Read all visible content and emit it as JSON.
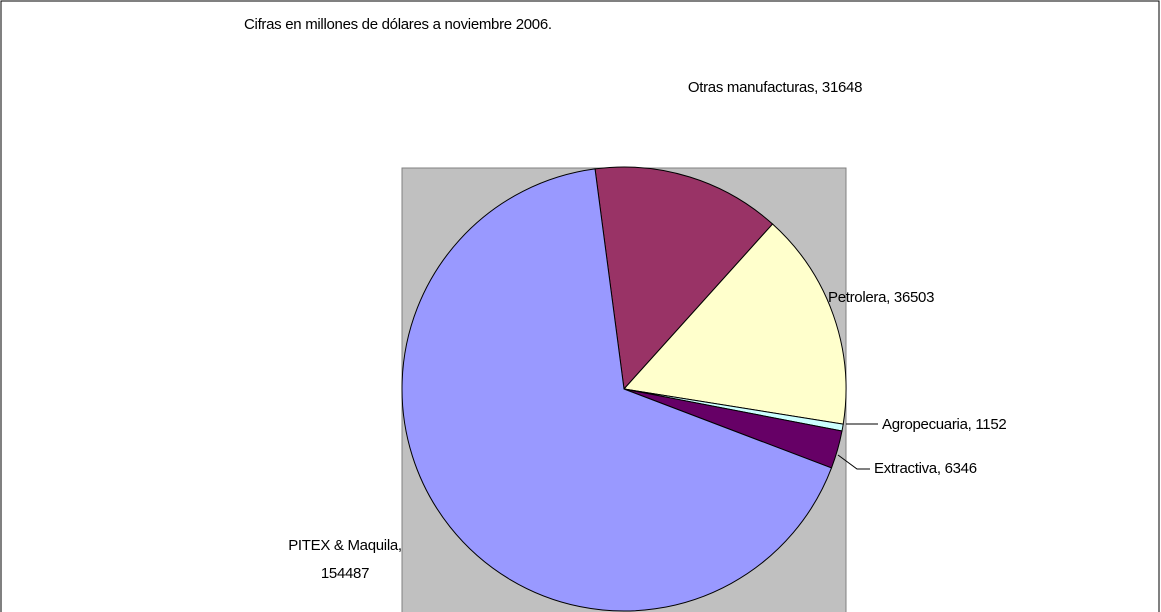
{
  "chart_data": {
    "type": "pie",
    "title": "Cifras en millones de dólares a noviembre 2006.",
    "values": [
      31648,
      36503,
      1152,
      6346,
      154487
    ],
    "value_labels": [
      "Otras manufacturas, 31648",
      "Petrolera, 36503",
      "Agropecuaria, 1152",
      "Extractiva, 6346",
      "PITEX & Maquila, 154487"
    ],
    "colors": [
      "#993366",
      "#ffffcc",
      "#ccffff",
      "#660066",
      "#9999ff"
    ]
  }
}
